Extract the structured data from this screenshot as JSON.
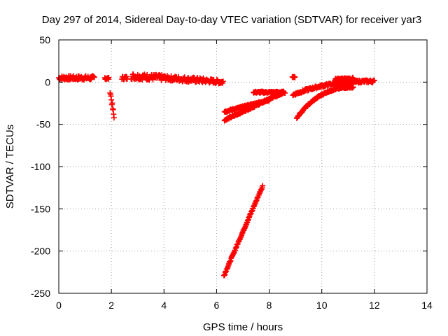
{
  "chart_data": {
    "type": "scatter",
    "title": "Day 297 of 2014, Sidereal Day-to-day VTEC variation (SDTVAR) for receiver yar3",
    "xlabel": "GPS time / hours",
    "ylabel": "SDTVAR / TECUs",
    "xlim": [
      0,
      14
    ],
    "ylim": [
      -250,
      50
    ],
    "x_ticks": [
      "0",
      "2",
      "4",
      "6",
      "8",
      "10",
      "12",
      "14"
    ],
    "y_ticks": [
      "50",
      "0",
      "-50",
      "-100",
      "-150",
      "-200",
      "-250"
    ],
    "grid": true,
    "marker": "plus",
    "color": "#ff0000",
    "segments": [
      {
        "x_start": 0.0,
        "x_end": 1.35,
        "y_start": 5,
        "y_end": 5,
        "jitter": 2.5
      },
      {
        "x_start": 1.75,
        "x_end": 1.9,
        "y_start": 5,
        "y_end": 4,
        "jitter": 1.5
      },
      {
        "x_start": 1.95,
        "x_end": 2.1,
        "y_start": -10,
        "y_end": -42,
        "jitter": 3
      },
      {
        "x_start": 2.4,
        "x_end": 2.6,
        "y_start": 5,
        "y_end": 5,
        "jitter": 2
      },
      {
        "x_start": 2.75,
        "x_end": 4.0,
        "y_start": 7,
        "y_end": 5,
        "jitter": 3.5
      },
      {
        "x_start": 4.0,
        "x_end": 5.5,
        "y_start": 5,
        "y_end": 2,
        "jitter": 3
      },
      {
        "x_start": 5.5,
        "x_end": 6.25,
        "y_start": 2,
        "y_end": 0,
        "jitter": 2.5
      },
      {
        "x_start": 6.28,
        "x_end": 7.75,
        "y_start": -229,
        "y_end": -123,
        "jitter": 1
      },
      {
        "x_start": 6.3,
        "x_end": 8.5,
        "y_start": -45,
        "y_end": -13,
        "jitter": 1
      },
      {
        "x_start": 6.3,
        "x_end": 8.0,
        "y_start": -35,
        "y_end": -21,
        "jitter": 1
      },
      {
        "x_start": 7.4,
        "x_end": 8.6,
        "y_start": -12,
        "y_end": -12,
        "jitter": 1
      },
      {
        "x_start": 8.88,
        "x_end": 8.98,
        "y_start": 6,
        "y_end": 6,
        "jitter": 0.5
      },
      {
        "x_start": 8.9,
        "x_end": 12.0,
        "y_start": -15,
        "y_end": 1,
        "jitter": 1.5,
        "curve": "rise"
      },
      {
        "x_start": 9.05,
        "x_end": 11.2,
        "y_start": -42,
        "y_end": -6,
        "jitter": 1,
        "curve": "rise"
      },
      {
        "x_start": 10.5,
        "x_end": 11.2,
        "y_start": 3,
        "y_end": 4,
        "jitter": 1.5
      }
    ]
  }
}
